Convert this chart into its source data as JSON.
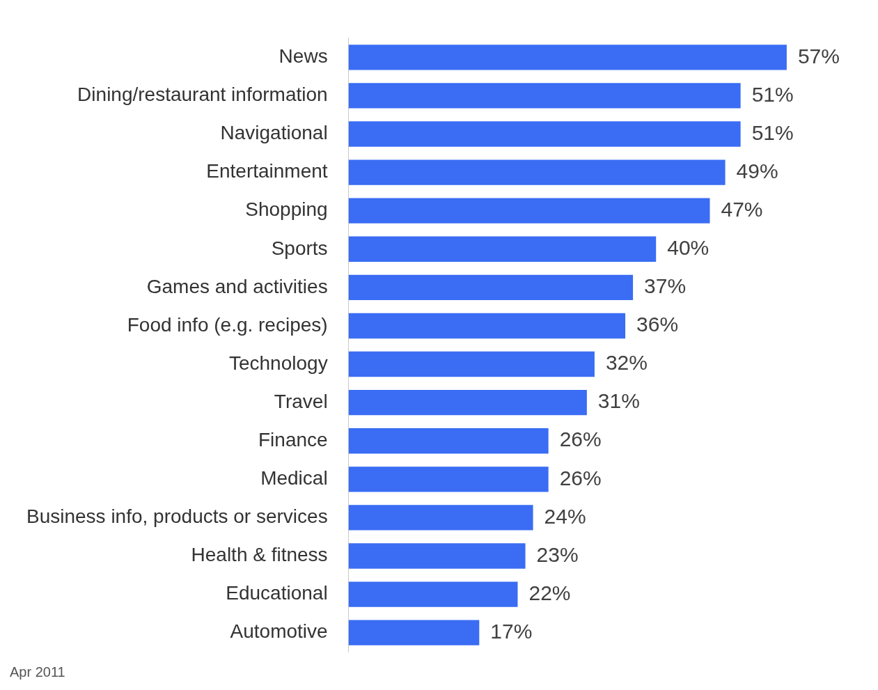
{
  "chart_data": {
    "type": "bar",
    "orientation": "horizontal",
    "categories": [
      "News",
      "Dining/restaurant information",
      "Navigational",
      "Entertainment",
      "Shopping",
      "Sports",
      "Games and activities",
      "Food info (e.g. recipes)",
      "Technology",
      "Travel",
      "Finance",
      "Medical",
      "Business info, products or services",
      "Health & fitness",
      "Educational",
      "Automotive"
    ],
    "values": [
      57,
      51,
      51,
      49,
      47,
      40,
      37,
      36,
      32,
      31,
      26,
      26,
      24,
      23,
      22,
      17
    ],
    "value_labels": [
      "57%",
      "51%",
      "51%",
      "49%",
      "47%",
      "40%",
      "37%",
      "36%",
      "32%",
      "31%",
      "26%",
      "26%",
      "24%",
      "23%",
      "22%",
      "17%"
    ],
    "color": "#3a6cf4",
    "grid": false,
    "legend": false,
    "annotations": [
      "Apr 2011"
    ]
  }
}
